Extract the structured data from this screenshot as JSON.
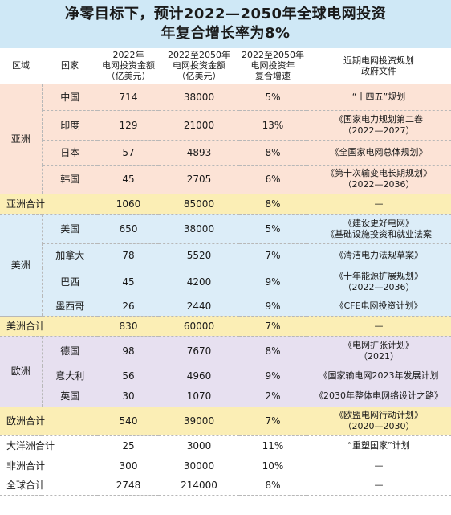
{
  "title": {
    "line1": "净零目标下，预计2022—2050年全球电网投资",
    "line2": "年复合增长率为8%"
  },
  "headers": {
    "region": "区域",
    "country": "国家",
    "v2022_line1": "2022年",
    "v2022_line2": "电网投资金额",
    "v2022_line3": "（亿美元）",
    "v2050_line1": "2022至2050年",
    "v2050_line2": "电网投资金额",
    "v2050_line3": "（亿美元）",
    "cagr_line1": "2022至2050年",
    "cagr_line2": "电网投资年",
    "cagr_line3": "复合增速",
    "doc_line1": "近期电网投资规划",
    "doc_line2": "政府文件"
  },
  "regions": {
    "asia": "亚洲",
    "america": "美洲",
    "europe": "欧洲"
  },
  "asia": [
    {
      "country": "中国",
      "v2022": "714",
      "v2050": "38000",
      "cagr": "5%",
      "doc1": "“十四五”规划",
      "doc2": ""
    },
    {
      "country": "印度",
      "v2022": "129",
      "v2050": "21000",
      "cagr": "13%",
      "doc1": "《国家电力规划第二卷",
      "doc2": "（2022—2027）"
    },
    {
      "country": "日本",
      "v2022": "57",
      "v2050": "4893",
      "cagr": "8%",
      "doc1": "《全国家电网总体规划》",
      "doc2": ""
    },
    {
      "country": "韩国",
      "v2022": "45",
      "v2050": "2705",
      "cagr": "6%",
      "doc1": "《第十次输变电长期规划》",
      "doc2": "（2022—2036）"
    }
  ],
  "asia_total": {
    "label": "亚洲合计",
    "v2022": "1060",
    "v2050": "85000",
    "cagr": "8%",
    "doc1": "—",
    "doc2": ""
  },
  "america": [
    {
      "country": "美国",
      "v2022": "650",
      "v2050": "38000",
      "cagr": "5%",
      "doc1": "《建设更好电网》",
      "doc2": "《基础设施投资和就业法案"
    },
    {
      "country": "加拿大",
      "v2022": "78",
      "v2050": "5520",
      "cagr": "7%",
      "doc1": "《清洁电力法规草案》",
      "doc2": ""
    },
    {
      "country": "巴西",
      "v2022": "45",
      "v2050": "4200",
      "cagr": "9%",
      "doc1": "《十年能源扩展规划》",
      "doc2": "（2022—2036）"
    },
    {
      "country": "墨西哥",
      "v2022": "26",
      "v2050": "2440",
      "cagr": "9%",
      "doc1": "《CFE电网投资计划》",
      "doc2": ""
    }
  ],
  "america_total": {
    "label": "美洲合计",
    "v2022": "830",
    "v2050": "60000",
    "cagr": "7%",
    "doc1": "—",
    "doc2": ""
  },
  "europe": [
    {
      "country": "德国",
      "v2022": "98",
      "v2050": "7670",
      "cagr": "8%",
      "doc1": "《电网扩张计划》",
      "doc2": "（2021）"
    },
    {
      "country": "意大利",
      "v2022": "56",
      "v2050": "4960",
      "cagr": "9%",
      "doc1": "《国家输电网2023年发展计划",
      "doc2": ""
    },
    {
      "country": "英国",
      "v2022": "30",
      "v2050": "1070",
      "cagr": "2%",
      "doc1": "《2030年整体电网络设计之路》",
      "doc2": ""
    }
  ],
  "europe_total": {
    "label": "欧洲合计",
    "v2022": "540",
    "v2050": "39000",
    "cagr": "7%",
    "doc1": "《欧盟电网行动计划》",
    "doc2": "（2020—2030）"
  },
  "oceania_total": {
    "label": "大洋洲合计",
    "v2022": "25",
    "v2050": "3000",
    "cagr": "11%",
    "doc1": "“重塑国家”计划",
    "doc2": ""
  },
  "africa_total": {
    "label": "非洲合计",
    "v2022": "300",
    "v2050": "30000",
    "cagr": "10%",
    "doc1": "—",
    "doc2": ""
  },
  "global_total": {
    "label": "全球合计",
    "v2022": "2748",
    "v2050": "214000",
    "cagr": "8%",
    "doc1": "—",
    "doc2": ""
  }
}
